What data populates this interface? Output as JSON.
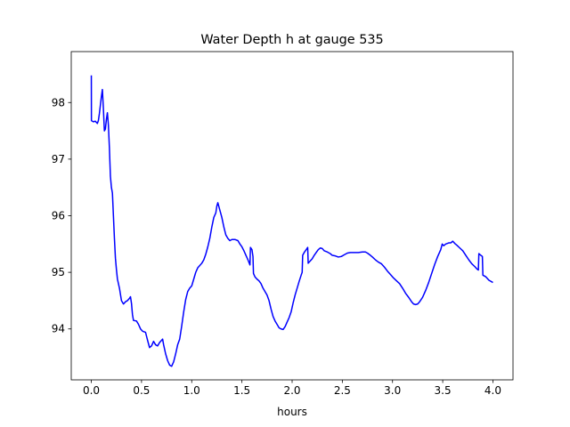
{
  "chart_data": {
    "type": "line",
    "title": "Water Depth h at gauge 535",
    "xlabel": "hours",
    "ylabel": "",
    "xlim": [
      -0.2,
      4.2
    ],
    "ylim": [
      93.1,
      98.9
    ],
    "xticks": [
      0.0,
      0.5,
      1.0,
      1.5,
      2.0,
      2.5,
      3.0,
      3.5,
      4.0
    ],
    "xtick_labels": [
      "0.0",
      "0.5",
      "1.0",
      "1.5",
      "2.0",
      "2.5",
      "3.0",
      "3.5",
      "4.0"
    ],
    "yticks": [
      94,
      95,
      96,
      97,
      98
    ],
    "ytick_labels": [
      "94",
      "95",
      "96",
      "97",
      "98"
    ],
    "grid": false,
    "series": [
      {
        "color": "#0000ff",
        "points": [
          [
            0.0,
            98.48
          ],
          [
            0.001,
            97.68
          ],
          [
            0.02,
            97.66
          ],
          [
            0.04,
            97.67
          ],
          [
            0.05,
            97.65
          ],
          [
            0.06,
            97.63
          ],
          [
            0.07,
            97.68
          ],
          [
            0.08,
            97.8
          ],
          [
            0.09,
            97.95
          ],
          [
            0.1,
            98.1
          ],
          [
            0.11,
            98.23
          ],
          [
            0.12,
            97.9
          ],
          [
            0.13,
            97.5
          ],
          [
            0.14,
            97.53
          ],
          [
            0.15,
            97.7
          ],
          [
            0.16,
            97.82
          ],
          [
            0.17,
            97.6
          ],
          [
            0.18,
            97.2
          ],
          [
            0.19,
            96.7
          ],
          [
            0.2,
            96.5
          ],
          [
            0.21,
            96.4
          ],
          [
            0.22,
            96.0
          ],
          [
            0.23,
            95.6
          ],
          [
            0.24,
            95.25
          ],
          [
            0.25,
            95.05
          ],
          [
            0.26,
            94.88
          ],
          [
            0.28,
            94.72
          ],
          [
            0.3,
            94.5
          ],
          [
            0.32,
            94.44
          ],
          [
            0.34,
            94.48
          ],
          [
            0.36,
            94.5
          ],
          [
            0.38,
            94.54
          ],
          [
            0.39,
            94.57
          ],
          [
            0.4,
            94.45
          ],
          [
            0.41,
            94.25
          ],
          [
            0.42,
            94.15
          ],
          [
            0.45,
            94.14
          ],
          [
            0.47,
            94.08
          ],
          [
            0.49,
            94.0
          ],
          [
            0.51,
            93.96
          ],
          [
            0.54,
            93.94
          ],
          [
            0.56,
            93.8
          ],
          [
            0.58,
            93.67
          ],
          [
            0.6,
            93.7
          ],
          [
            0.62,
            93.78
          ],
          [
            0.64,
            93.72
          ],
          [
            0.66,
            93.7
          ],
          [
            0.68,
            93.76
          ],
          [
            0.7,
            93.8
          ],
          [
            0.71,
            93.82
          ],
          [
            0.72,
            93.72
          ],
          [
            0.74,
            93.56
          ],
          [
            0.76,
            93.44
          ],
          [
            0.78,
            93.36
          ],
          [
            0.8,
            93.34
          ],
          [
            0.82,
            93.42
          ],
          [
            0.84,
            93.56
          ],
          [
            0.86,
            93.72
          ],
          [
            0.88,
            93.82
          ],
          [
            0.9,
            94.05
          ],
          [
            0.92,
            94.3
          ],
          [
            0.94,
            94.52
          ],
          [
            0.96,
            94.66
          ],
          [
            0.98,
            94.72
          ],
          [
            1.0,
            94.76
          ],
          [
            1.02,
            94.88
          ],
          [
            1.04,
            95.0
          ],
          [
            1.06,
            95.08
          ],
          [
            1.08,
            95.12
          ],
          [
            1.1,
            95.16
          ],
          [
            1.12,
            95.22
          ],
          [
            1.14,
            95.32
          ],
          [
            1.16,
            95.45
          ],
          [
            1.18,
            95.6
          ],
          [
            1.2,
            95.8
          ],
          [
            1.22,
            95.97
          ],
          [
            1.24,
            96.05
          ],
          [
            1.25,
            96.17
          ],
          [
            1.26,
            96.23
          ],
          [
            1.28,
            96.1
          ],
          [
            1.3,
            95.97
          ],
          [
            1.32,
            95.8
          ],
          [
            1.34,
            95.66
          ],
          [
            1.36,
            95.6
          ],
          [
            1.38,
            95.56
          ],
          [
            1.4,
            95.58
          ],
          [
            1.43,
            95.58
          ],
          [
            1.46,
            95.56
          ],
          [
            1.48,
            95.5
          ],
          [
            1.5,
            95.45
          ],
          [
            1.52,
            95.38
          ],
          [
            1.54,
            95.3
          ],
          [
            1.56,
            95.22
          ],
          [
            1.58,
            95.13
          ],
          [
            1.585,
            95.44
          ],
          [
            1.6,
            95.4
          ],
          [
            1.61,
            95.28
          ],
          [
            1.615,
            94.98
          ],
          [
            1.63,
            94.92
          ],
          [
            1.65,
            94.88
          ],
          [
            1.67,
            94.85
          ],
          [
            1.69,
            94.8
          ],
          [
            1.71,
            94.72
          ],
          [
            1.73,
            94.66
          ],
          [
            1.75,
            94.6
          ],
          [
            1.77,
            94.5
          ],
          [
            1.79,
            94.35
          ],
          [
            1.81,
            94.22
          ],
          [
            1.83,
            94.14
          ],
          [
            1.85,
            94.08
          ],
          [
            1.87,
            94.02
          ],
          [
            1.89,
            94.0
          ],
          [
            1.91,
            93.99
          ],
          [
            1.93,
            94.04
          ],
          [
            1.95,
            94.12
          ],
          [
            1.97,
            94.2
          ],
          [
            1.99,
            94.3
          ],
          [
            2.01,
            94.46
          ],
          [
            2.03,
            94.6
          ],
          [
            2.05,
            94.72
          ],
          [
            2.07,
            94.84
          ],
          [
            2.09,
            94.95
          ],
          [
            2.1,
            95.0
          ],
          [
            2.105,
            95.3
          ],
          [
            2.12,
            95.35
          ],
          [
            2.14,
            95.4
          ],
          [
            2.155,
            95.44
          ],
          [
            2.16,
            95.16
          ],
          [
            2.18,
            95.2
          ],
          [
            2.2,
            95.24
          ],
          [
            2.22,
            95.3
          ],
          [
            2.24,
            95.35
          ],
          [
            2.26,
            95.4
          ],
          [
            2.28,
            95.43
          ],
          [
            2.3,
            95.42
          ],
          [
            2.32,
            95.38
          ],
          [
            2.35,
            95.36
          ],
          [
            2.38,
            95.33
          ],
          [
            2.4,
            95.3
          ],
          [
            2.43,
            95.29
          ],
          [
            2.46,
            95.27
          ],
          [
            2.49,
            95.28
          ],
          [
            2.52,
            95.31
          ],
          [
            2.55,
            95.34
          ],
          [
            2.58,
            95.35
          ],
          [
            2.62,
            95.35
          ],
          [
            2.66,
            95.35
          ],
          [
            2.7,
            95.36
          ],
          [
            2.73,
            95.36
          ],
          [
            2.75,
            95.34
          ],
          [
            2.78,
            95.3
          ],
          [
            2.8,
            95.27
          ],
          [
            2.83,
            95.22
          ],
          [
            2.86,
            95.18
          ],
          [
            2.89,
            95.15
          ],
          [
            2.92,
            95.09
          ],
          [
            2.95,
            95.02
          ],
          [
            2.98,
            94.96
          ],
          [
            3.01,
            94.9
          ],
          [
            3.04,
            94.85
          ],
          [
            3.07,
            94.8
          ],
          [
            3.1,
            94.72
          ],
          [
            3.13,
            94.63
          ],
          [
            3.16,
            94.56
          ],
          [
            3.19,
            94.48
          ],
          [
            3.21,
            94.44
          ],
          [
            3.23,
            94.43
          ],
          [
            3.25,
            94.44
          ],
          [
            3.27,
            94.48
          ],
          [
            3.3,
            94.56
          ],
          [
            3.33,
            94.68
          ],
          [
            3.36,
            94.82
          ],
          [
            3.39,
            94.98
          ],
          [
            3.42,
            95.14
          ],
          [
            3.45,
            95.28
          ],
          [
            3.48,
            95.4
          ],
          [
            3.495,
            95.5
          ],
          [
            3.51,
            95.47
          ],
          [
            3.53,
            95.5
          ],
          [
            3.56,
            95.52
          ],
          [
            3.58,
            95.52
          ],
          [
            3.6,
            95.55
          ],
          [
            3.62,
            95.51
          ],
          [
            3.64,
            95.48
          ],
          [
            3.67,
            95.43
          ],
          [
            3.7,
            95.38
          ],
          [
            3.73,
            95.3
          ],
          [
            3.76,
            95.22
          ],
          [
            3.79,
            95.15
          ],
          [
            3.82,
            95.1
          ],
          [
            3.84,
            95.06
          ],
          [
            3.855,
            95.04
          ],
          [
            3.86,
            95.33
          ],
          [
            3.88,
            95.3
          ],
          [
            3.895,
            95.28
          ],
          [
            3.9,
            94.95
          ],
          [
            3.93,
            94.92
          ],
          [
            3.96,
            94.86
          ],
          [
            4.0,
            94.82
          ]
        ]
      }
    ]
  }
}
